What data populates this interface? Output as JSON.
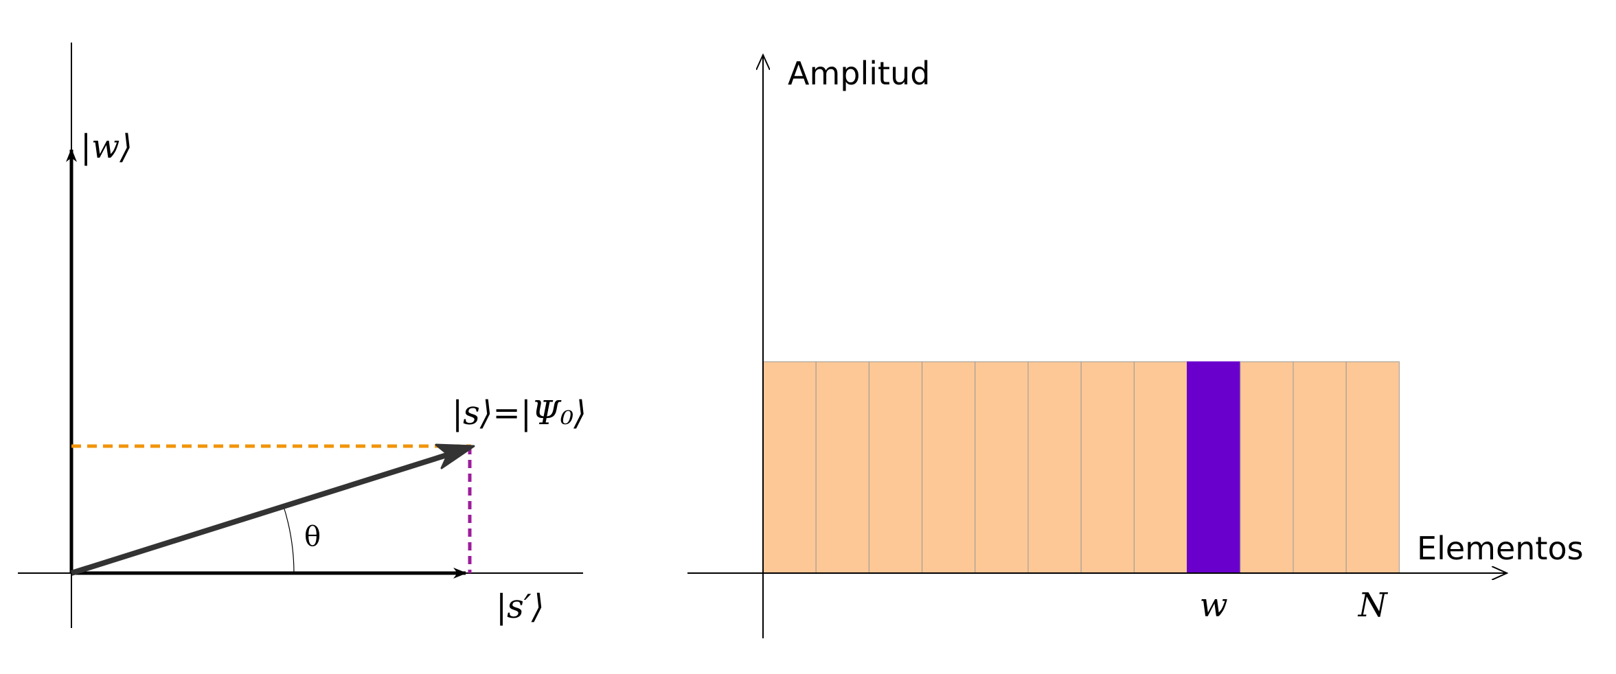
{
  "left_diagram": {
    "axis_up_label": "|w⟩",
    "axis_right_label": "|s′⟩",
    "state_label": "|s⟩=|Ψ₀⟩",
    "angle_label": "θ",
    "colors": {
      "axis": "#000000",
      "state_vector": "#333333",
      "horizontal_projection": "#F0950A",
      "vertical_projection": "#9B1E9B"
    }
  },
  "right_diagram": {
    "y_axis_label": "Amplitud",
    "x_axis_label": "Elementos",
    "marked_tick_label": "w",
    "end_tick_label": "N",
    "bar_count": 12,
    "marked_bar_index": 8,
    "bar_amplitude": 1,
    "colors": {
      "bar": "#FDC896",
      "marked_bar": "#6A00CC",
      "bar_border": "#999999"
    }
  }
}
